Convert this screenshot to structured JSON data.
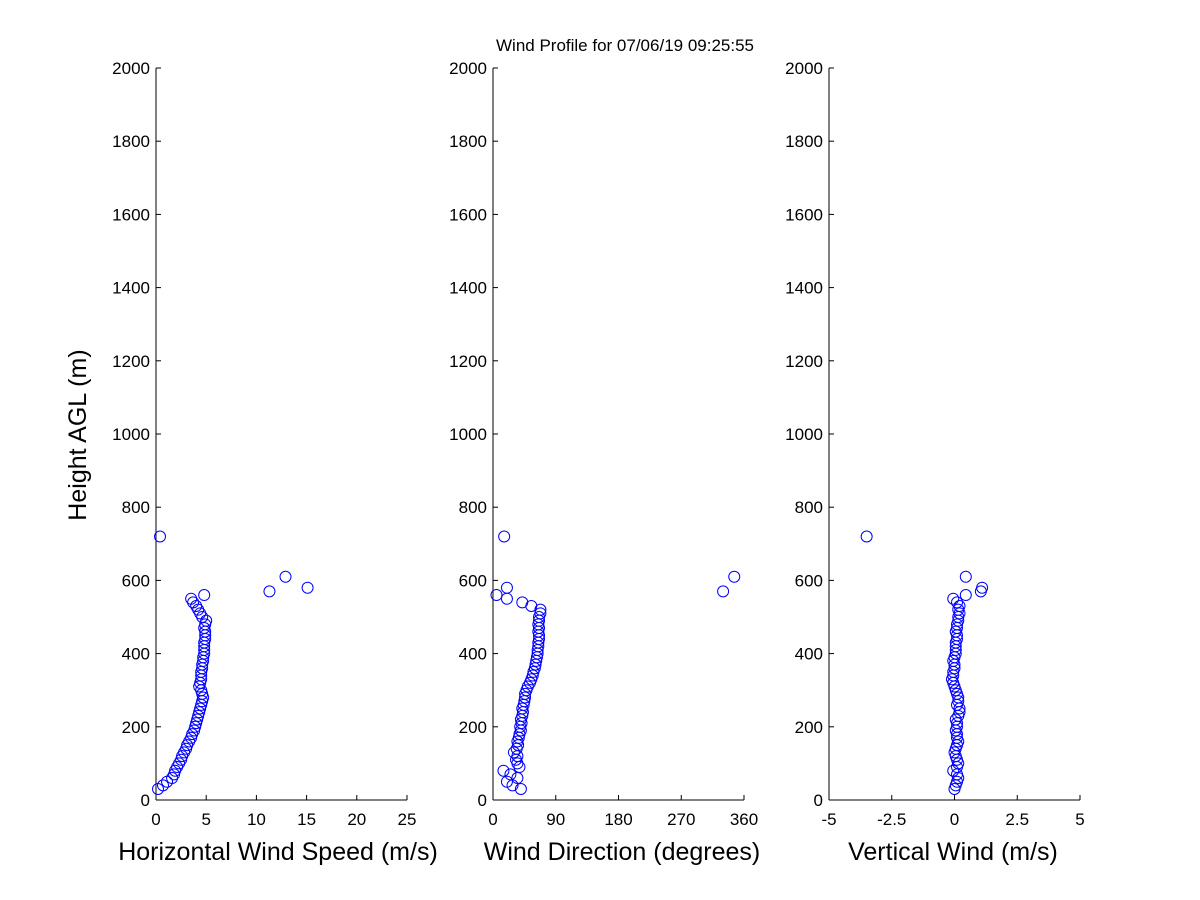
{
  "title": "Wind Profile for  07/06/19 09:25:55",
  "ylabel": "Height AGL (m)",
  "chart_data": [
    {
      "type": "scatter",
      "xlabel": "Horizontal Wind Speed (m/s)",
      "ylabel": "Height AGL (m)",
      "xlim": [
        0,
        25
      ],
      "ylim": [
        0,
        2000
      ],
      "xticks": [
        "0",
        "5",
        "10",
        "15",
        "20",
        "25"
      ],
      "yticks": [
        "0",
        "200",
        "400",
        "600",
        "800",
        "1000",
        "1200",
        "1400",
        "1600",
        "1800",
        "2000"
      ],
      "marker_color": "#0000ff",
      "points": [
        [
          0.2,
          30
        ],
        [
          0.7,
          40
        ],
        [
          1.1,
          50
        ],
        [
          1.6,
          60
        ],
        [
          1.8,
          70
        ],
        [
          1.9,
          80
        ],
        [
          2.1,
          90
        ],
        [
          2.3,
          100
        ],
        [
          2.5,
          110
        ],
        [
          2.6,
          120
        ],
        [
          2.8,
          130
        ],
        [
          3.0,
          140
        ],
        [
          3.1,
          150
        ],
        [
          3.3,
          160
        ],
        [
          3.5,
          170
        ],
        [
          3.6,
          180
        ],
        [
          3.8,
          190
        ],
        [
          3.9,
          200
        ],
        [
          4.0,
          210
        ],
        [
          4.1,
          220
        ],
        [
          4.2,
          230
        ],
        [
          4.3,
          240
        ],
        [
          4.4,
          250
        ],
        [
          4.5,
          260
        ],
        [
          4.6,
          270
        ],
        [
          4.7,
          280
        ],
        [
          4.6,
          290
        ],
        [
          4.5,
          300
        ],
        [
          4.3,
          310
        ],
        [
          4.4,
          320
        ],
        [
          4.5,
          330
        ],
        [
          4.5,
          340
        ],
        [
          4.5,
          350
        ],
        [
          4.6,
          360
        ],
        [
          4.6,
          370
        ],
        [
          4.7,
          380
        ],
        [
          4.7,
          390
        ],
        [
          4.8,
          400
        ],
        [
          4.8,
          410
        ],
        [
          4.8,
          420
        ],
        [
          4.8,
          430
        ],
        [
          4.9,
          440
        ],
        [
          4.9,
          450
        ],
        [
          4.9,
          460
        ],
        [
          4.8,
          470
        ],
        [
          4.9,
          480
        ],
        [
          5.0,
          490
        ],
        [
          4.6,
          500
        ],
        [
          4.4,
          510
        ],
        [
          4.2,
          520
        ],
        [
          4.0,
          530
        ],
        [
          3.7,
          540
        ],
        [
          3.5,
          550
        ],
        [
          4.8,
          560
        ],
        [
          11.3,
          570
        ],
        [
          15.1,
          580
        ],
        [
          12.9,
          610
        ],
        [
          0.4,
          720
        ]
      ]
    },
    {
      "type": "scatter",
      "xlabel": "Wind Direction (degrees)",
      "ylabel": "",
      "xlim": [
        0,
        360
      ],
      "ylim": [
        0,
        2000
      ],
      "xticks": [
        "0",
        "90",
        "180",
        "270",
        "360"
      ],
      "yticks": [
        "0",
        "200",
        "400",
        "600",
        "800",
        "1000",
        "1200",
        "1400",
        "1600",
        "1800",
        "2000"
      ],
      "marker_color": "#0000ff",
      "points": [
        [
          40,
          30
        ],
        [
          28,
          40
        ],
        [
          20,
          50
        ],
        [
          35,
          60
        ],
        [
          25,
          70
        ],
        [
          15,
          80
        ],
        [
          38,
          90
        ],
        [
          35,
          100
        ],
        [
          33,
          110
        ],
        [
          35,
          120
        ],
        [
          30,
          130
        ],
        [
          34,
          140
        ],
        [
          36,
          150
        ],
        [
          35,
          160
        ],
        [
          37,
          170
        ],
        [
          38,
          180
        ],
        [
          40,
          190
        ],
        [
          39,
          200
        ],
        [
          41,
          210
        ],
        [
          40,
          220
        ],
        [
          42,
          230
        ],
        [
          43,
          240
        ],
        [
          42,
          250
        ],
        [
          44,
          260
        ],
        [
          45,
          270
        ],
        [
          46,
          280
        ],
        [
          46,
          290
        ],
        [
          48,
          300
        ],
        [
          50,
          310
        ],
        [
          53,
          320
        ],
        [
          55,
          330
        ],
        [
          57,
          340
        ],
        [
          58,
          350
        ],
        [
          60,
          360
        ],
        [
          61,
          370
        ],
        [
          62,
          380
        ],
        [
          63,
          390
        ],
        [
          64,
          400
        ],
        [
          64,
          410
        ],
        [
          65,
          420
        ],
        [
          65,
          430
        ],
        [
          66,
          440
        ],
        [
          66,
          450
        ],
        [
          65,
          460
        ],
        [
          66,
          470
        ],
        [
          65,
          480
        ],
        [
          66,
          490
        ],
        [
          66,
          500
        ],
        [
          68,
          510
        ],
        [
          68,
          520
        ],
        [
          55,
          530
        ],
        [
          42,
          540
        ],
        [
          20,
          550
        ],
        [
          5,
          560
        ],
        [
          330,
          570
        ],
        [
          20,
          580
        ],
        [
          346,
          610
        ],
        [
          16,
          720
        ]
      ]
    },
    {
      "type": "scatter",
      "xlabel": "Vertical Wind (m/s)",
      "ylabel": "",
      "xlim": [
        -5,
        5
      ],
      "ylim": [
        0,
        2000
      ],
      "xticks": [
        "-5",
        "-2.5",
        "0",
        "2.5",
        "5"
      ],
      "yticks": [
        "0",
        "200",
        "400",
        "600",
        "800",
        "1000",
        "1200",
        "1400",
        "1600",
        "1800",
        "2000"
      ],
      "marker_color": "#0000ff",
      "points": [
        [
          0.0,
          30
        ],
        [
          0.05,
          40
        ],
        [
          0.1,
          50
        ],
        [
          0.15,
          60
        ],
        [
          0.1,
          70
        ],
        [
          -0.05,
          80
        ],
        [
          0.1,
          90
        ],
        [
          0.15,
          100
        ],
        [
          0.1,
          110
        ],
        [
          0.05,
          120
        ],
        [
          0.0,
          130
        ],
        [
          0.05,
          140
        ],
        [
          0.1,
          150
        ],
        [
          0.15,
          160
        ],
        [
          0.1,
          170
        ],
        [
          0.1,
          180
        ],
        [
          0.05,
          190
        ],
        [
          0.1,
          200
        ],
        [
          0.1,
          210
        ],
        [
          0.05,
          220
        ],
        [
          0.15,
          230
        ],
        [
          0.2,
          240
        ],
        [
          0.2,
          250
        ],
        [
          0.1,
          260
        ],
        [
          0.15,
          270
        ],
        [
          0.15,
          280
        ],
        [
          0.1,
          290
        ],
        [
          0.05,
          300
        ],
        [
          0.0,
          310
        ],
        [
          -0.05,
          320
        ],
        [
          -0.1,
          330
        ],
        [
          -0.05,
          340
        ],
        [
          -0.05,
          350
        ],
        [
          0.0,
          360
        ],
        [
          0.0,
          370
        ],
        [
          -0.05,
          380
        ],
        [
          0.0,
          390
        ],
        [
          0.05,
          400
        ],
        [
          0.05,
          410
        ],
        [
          0.05,
          420
        ],
        [
          0.05,
          430
        ],
        [
          0.1,
          440
        ],
        [
          0.1,
          450
        ],
        [
          0.05,
          460
        ],
        [
          0.1,
          470
        ],
        [
          0.1,
          480
        ],
        [
          0.15,
          490
        ],
        [
          0.15,
          500
        ],
        [
          0.2,
          510
        ],
        [
          0.15,
          520
        ],
        [
          0.2,
          530
        ],
        [
          0.1,
          540
        ],
        [
          -0.05,
          550
        ],
        [
          0.45,
          560
        ],
        [
          1.05,
          570
        ],
        [
          1.1,
          580
        ],
        [
          0.45,
          610
        ],
        [
          -3.5,
          720
        ]
      ]
    }
  ]
}
